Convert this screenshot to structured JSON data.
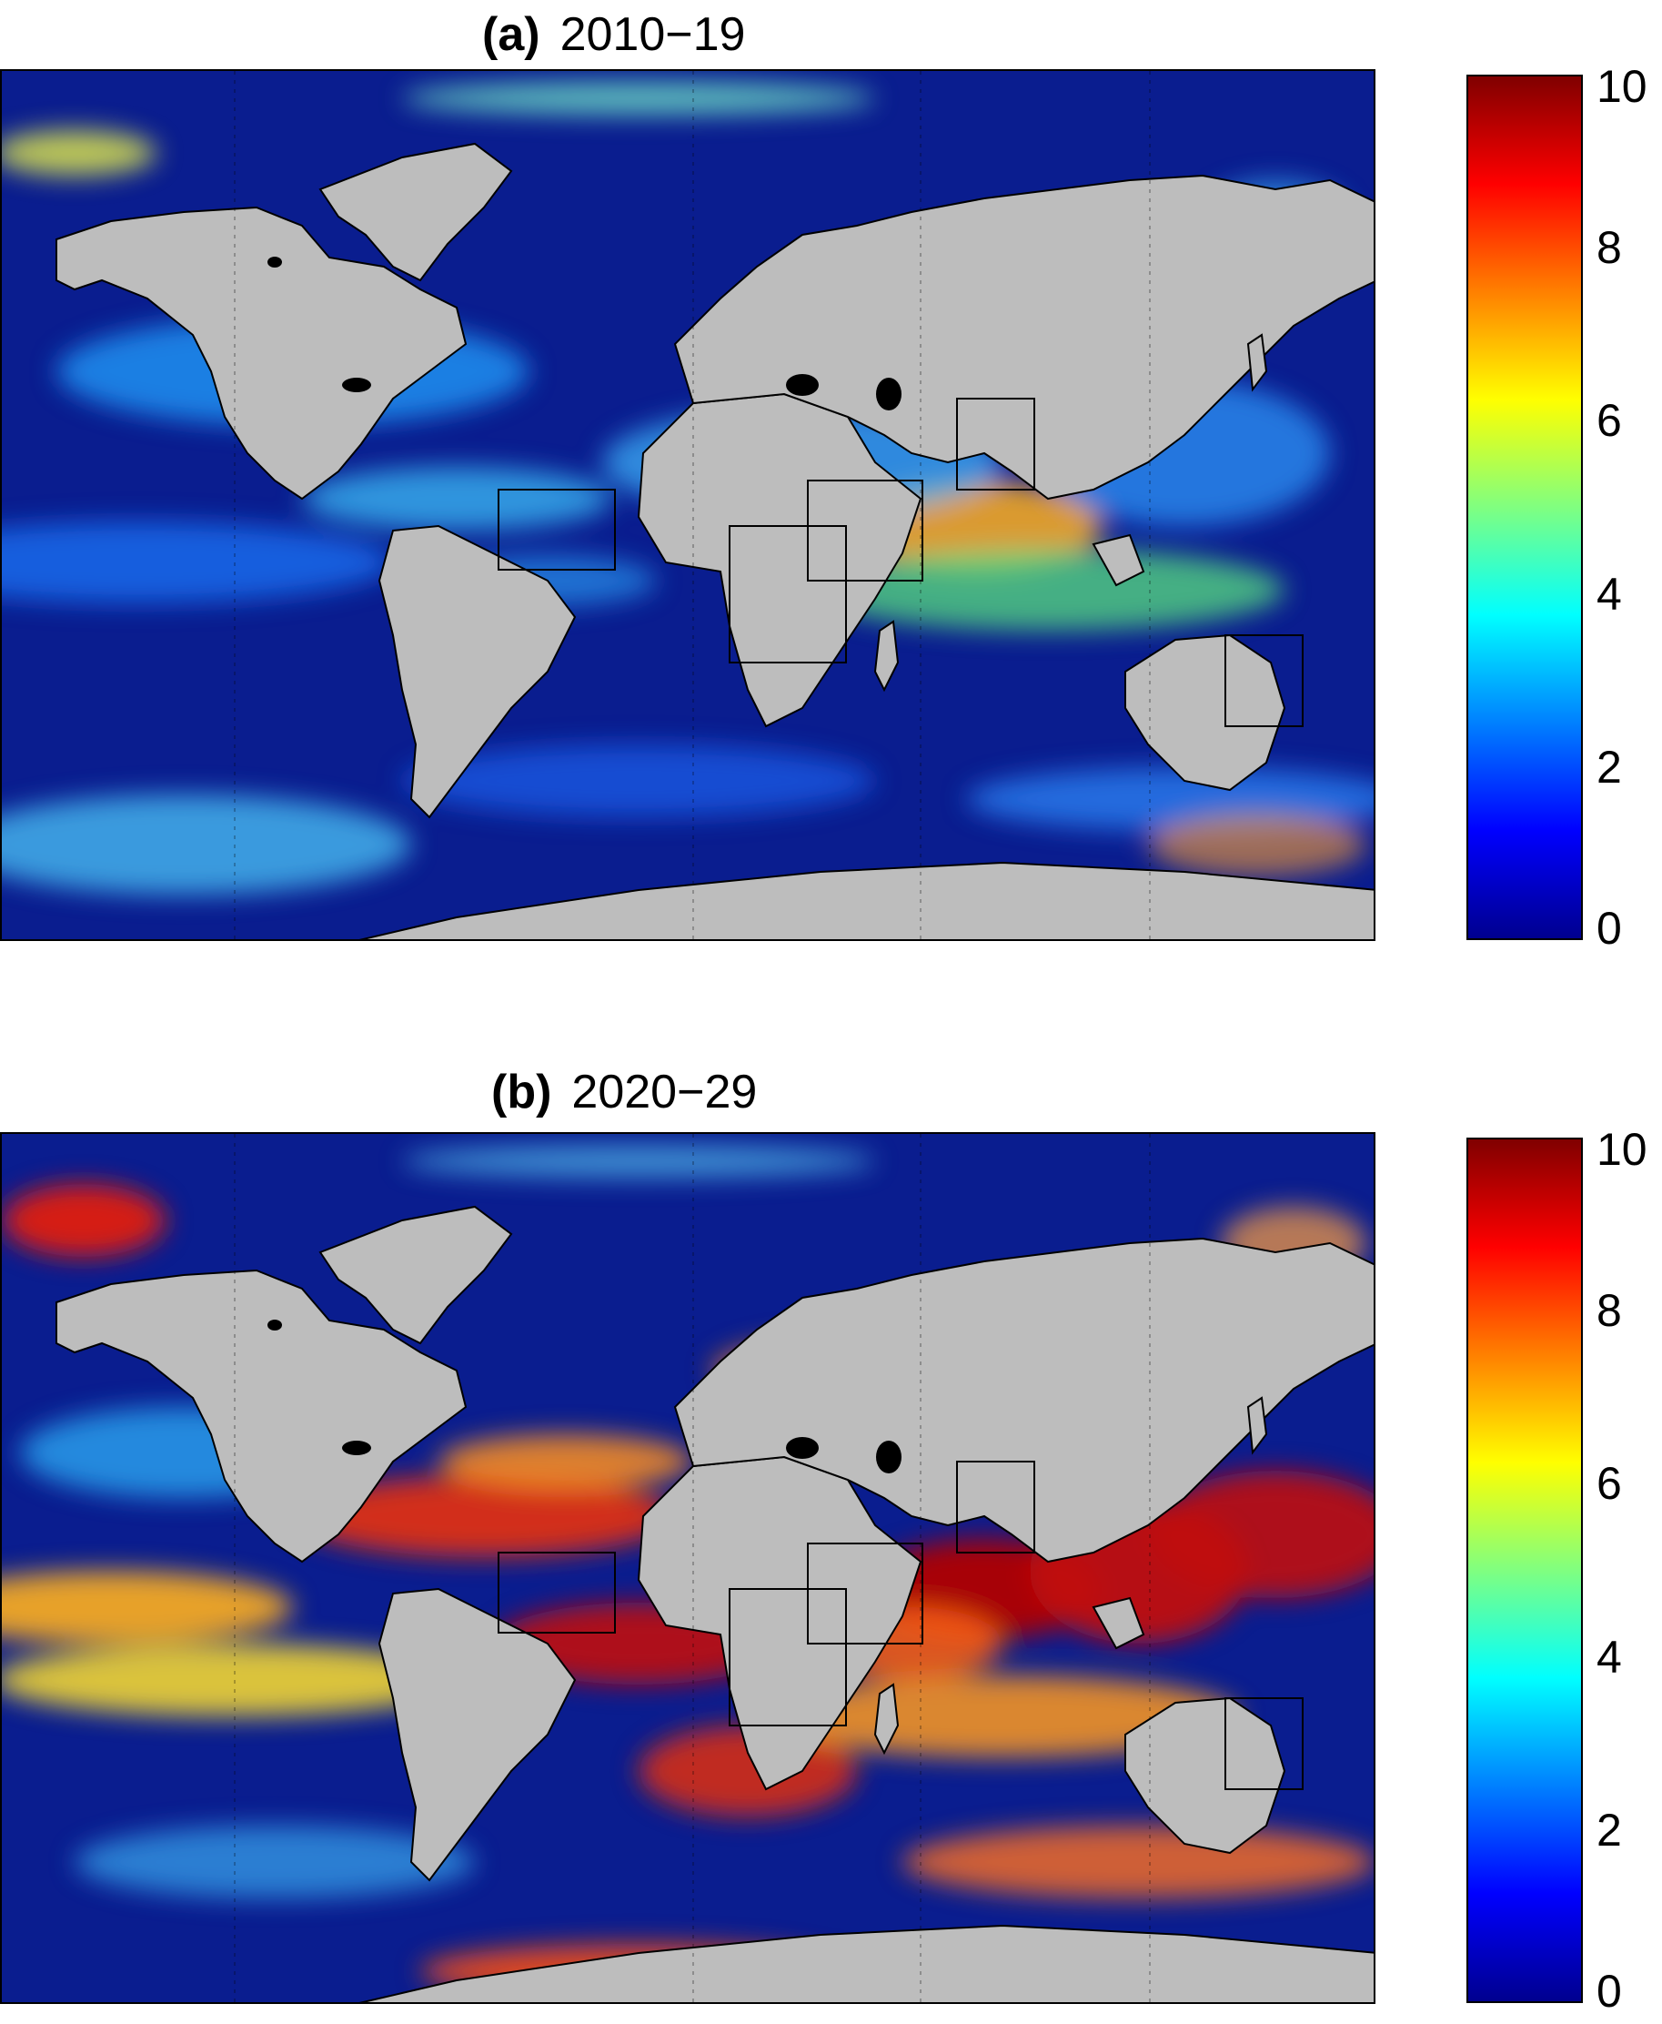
{
  "colors": {
    "land": "#bdbdbd",
    "ocean_low": "#0a1d8f",
    "lake": "#000000",
    "colorbar_stops": [
      "#00008f",
      "#0000ff",
      "#0080ff",
      "#00ffff",
      "#80ff80",
      "#ffff00",
      "#ff8000",
      "#ff0000",
      "#800000"
    ]
  },
  "panels": [
    {
      "letter": "(a)",
      "period": "2010−19",
      "colorbar": {
        "min": 0,
        "max": 10,
        "ticks": [
          "0",
          "2",
          "4",
          "6",
          "8",
          "10"
        ]
      },
      "intensity": "low"
    },
    {
      "letter": "(b)",
      "period": "2020−29",
      "colorbar": {
        "min": 0,
        "max": 10,
        "ticks": [
          "0",
          "2",
          "4",
          "6",
          "8",
          "10"
        ]
      },
      "intensity": "high"
    }
  ]
}
